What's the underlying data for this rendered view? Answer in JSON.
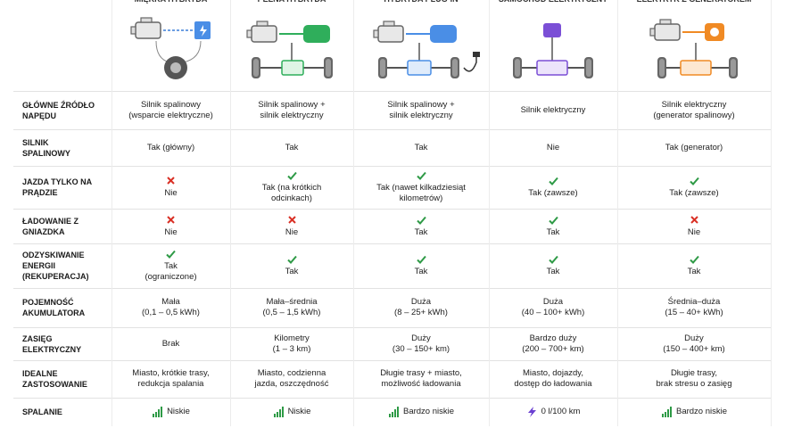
{
  "header": {
    "columns": [
      "MIĘKKA HYBRYDA",
      "PEŁNA HYBRYDA",
      "HYBRYDA PLUG-IN",
      "SAMOCHÓD ELEKTRYCZNY",
      "ELEKTRYK Z GENERATOREM"
    ]
  },
  "table": {
    "rows": [
      {
        "label": [
          "GŁÓWNE ŹRÓDŁO",
          "NAPĘDU"
        ],
        "cells": [
          [
            "Silnik spalinowy",
            "(wsparcie elektryczne)"
          ],
          [
            "Silnik spalinowy +",
            "silnik elektryczny"
          ],
          [
            "Silnik spalinowy +",
            "silnik elektryczny"
          ],
          [
            "Silnik elektryczny"
          ],
          [
            "Silnik elektryczny",
            "(generator spalinowy)"
          ]
        ]
      },
      {
        "label": [
          "SILNIK",
          "SPALINOWY"
        ],
        "cells": [
          [
            "Tak (główny)"
          ],
          [
            "Tak"
          ],
          [
            "Tak"
          ],
          [
            "Nie"
          ],
          [
            "Tak (generator)"
          ]
        ]
      },
      {
        "label": [
          "JAZDA TYLKO NA",
          "PRĄDZIE"
        ],
        "cells": [
          [
            "Nie"
          ],
          [
            "Tak (na krótkich",
            "odcinkach)"
          ],
          [
            "Tak (nawet kilkadziesiąt",
            "kilometrów)"
          ],
          [
            "Tak (zawsze)"
          ],
          [
            "Tak (zawsze)"
          ]
        ]
      },
      {
        "label": [
          "ŁADOWANIE Z",
          "GNIAZDKA"
        ],
        "cells": [
          [
            "Nie"
          ],
          [
            "Nie"
          ],
          [
            "Tak"
          ],
          [
            "Tak"
          ],
          [
            "Nie"
          ]
        ]
      },
      {
        "label": [
          "ODZYSKIWANIE",
          "ENERGII (REKUPERACJA)"
        ],
        "cells": [
          [
            "Tak",
            "(ograniczone)"
          ],
          [
            "Tak"
          ],
          [
            "Tak"
          ],
          [
            "Tak"
          ],
          [
            "Tak"
          ]
        ]
      },
      {
        "label": [
          "POJEMNOŚĆ",
          "AKUMULATORA"
        ],
        "cells": [
          [
            "Mała",
            "(0,1 – 0,5 kWh)"
          ],
          [
            "Mała–średnia",
            "(0,5 – 1,5 kWh)"
          ],
          [
            "Duża",
            "(8 – 25+ kWh)"
          ],
          [
            "Duża",
            "(40 – 100+ kWh)"
          ],
          [
            "Średnia–duża",
            "(15 – 40+ kWh)"
          ]
        ]
      },
      {
        "label": [
          "ZASIĘG ELEKTRYCZNY"
        ],
        "cells": [
          [
            "Brak"
          ],
          [
            "Kilometry",
            "(1 – 3 km)"
          ],
          [
            "Duży",
            "(30 – 150+ km)"
          ],
          [
            "Bardzo duży",
            "(200 – 700+ km)"
          ],
          [
            "Duży",
            "(150 – 400+ km)"
          ]
        ]
      },
      {
        "label": [
          "IDEALNE",
          "ZASTOSOWANIE"
        ],
        "cells": [
          [
            "Miasto, krótkie trasy,",
            "redukcja spalania"
          ],
          [
            "Miasto, codzienna",
            "jazda, oszczędność"
          ],
          [
            "Długie trasy + miasto,",
            "możliwość ładowania"
          ],
          [
            "Miasto, dojazdy,",
            "dostęp do ładowania"
          ],
          [
            "Długie trasy,",
            "brak stresu o zasięg"
          ]
        ]
      },
      {
        "label": [
          "SPALANIE"
        ],
        "cells": [
          [
            "Niskie"
          ],
          [
            "Niskie"
          ],
          [
            "Bardzo niskie"
          ],
          [
            "0 l/100 km"
          ],
          [
            "Bardzo niskie"
          ]
        ]
      }
    ]
  }
}
